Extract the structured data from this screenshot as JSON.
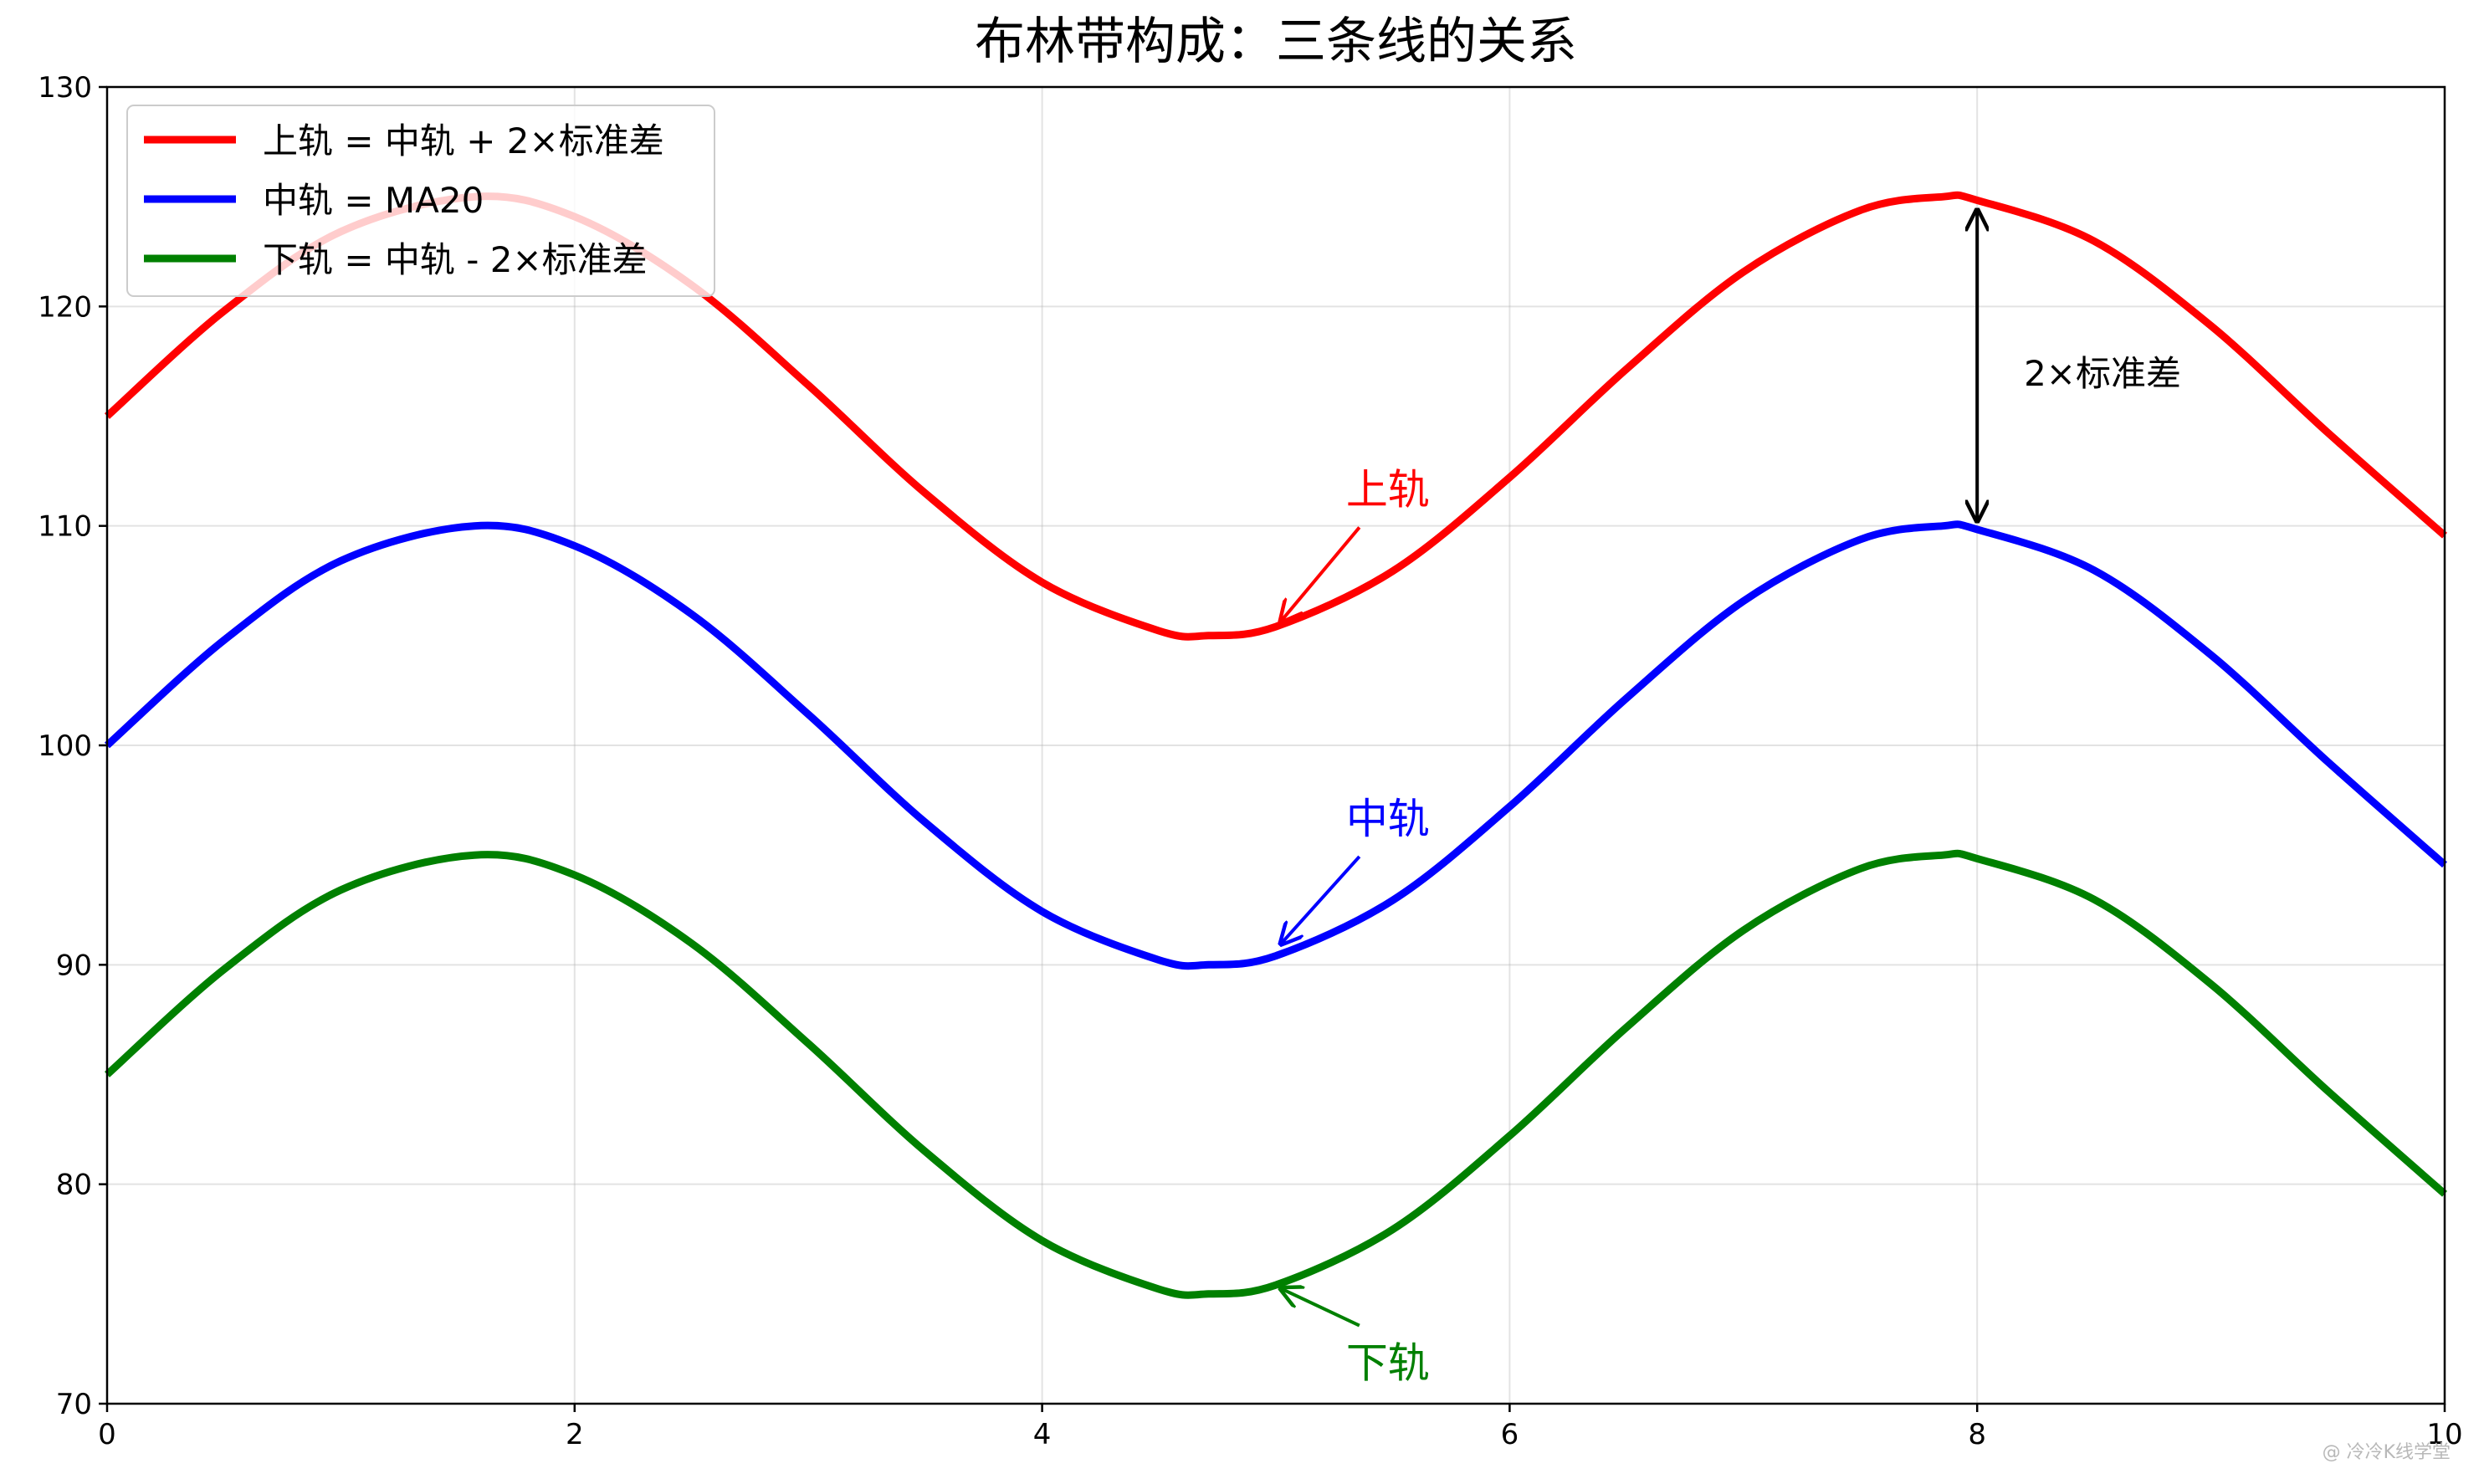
{
  "chart_data": {
    "type": "line",
    "title": "布林带构成：三条线的关系",
    "xlabel": "",
    "ylabel": "",
    "xlim": [
      0,
      10
    ],
    "ylim": [
      70,
      130
    ],
    "xticks": [
      "0",
      "2",
      "4",
      "6",
      "8",
      "10"
    ],
    "yticks": [
      "70",
      "80",
      "90",
      "100",
      "110",
      "120",
      "130"
    ],
    "grid": true,
    "legend_position": "top-left",
    "series": [
      {
        "name": "上轨 = 中轨 + 2×标准差",
        "color": "#ff0000",
        "x": [
          0,
          0.5,
          1.0,
          1.5708,
          2.0,
          2.5,
          3.0,
          3.5,
          4.0,
          4.5,
          4.7124,
          5.0,
          5.5,
          6.0,
          6.5,
          7.0,
          7.5,
          7.854,
          8.0,
          8.5,
          9.0,
          9.5,
          10.0
        ],
        "y": [
          115.0,
          119.79,
          123.41,
          125.0,
          124.09,
          120.98,
          116.41,
          111.49,
          107.43,
          105.22,
          105.0,
          105.41,
          107.94,
          112.21,
          117.15,
          121.57,
          124.38,
          125.0,
          124.84,
          122.98,
          119.12,
          114.25,
          109.56
        ]
      },
      {
        "name": "中轨 = MA20",
        "color": "#0000ff",
        "x": [
          0,
          0.5,
          1.0,
          1.5708,
          2.0,
          2.5,
          3.0,
          3.5,
          4.0,
          4.5,
          4.7124,
          5.0,
          5.5,
          6.0,
          6.5,
          7.0,
          7.5,
          7.854,
          8.0,
          8.5,
          9.0,
          9.5,
          10.0
        ],
        "y": [
          100.0,
          104.79,
          108.41,
          110.0,
          109.09,
          105.98,
          101.41,
          96.49,
          92.43,
          90.22,
          90.0,
          90.41,
          92.94,
          97.21,
          102.15,
          106.57,
          109.38,
          110.0,
          109.84,
          107.98,
          104.12,
          99.25,
          94.56
        ]
      },
      {
        "name": "下轨 = 中轨 - 2×标准差",
        "color": "#008000",
        "x": [
          0,
          0.5,
          1.0,
          1.5708,
          2.0,
          2.5,
          3.0,
          3.5,
          4.0,
          4.5,
          4.7124,
          5.0,
          5.5,
          6.0,
          6.5,
          7.0,
          7.5,
          7.854,
          8.0,
          8.5,
          9.0,
          9.5,
          10.0
        ],
        "y": [
          85.0,
          89.79,
          93.41,
          95.0,
          94.09,
          90.98,
          86.41,
          81.49,
          77.43,
          75.22,
          75.0,
          75.41,
          77.94,
          82.21,
          87.15,
          91.57,
          94.38,
          95.0,
          94.84,
          92.98,
          89.12,
          84.25,
          79.56
        ]
      }
    ],
    "annotations": [
      {
        "text": "上轨",
        "color": "#ff0000",
        "text_at": [
          5.3,
          111
        ],
        "arrow_to": [
          5.0,
          105.5
        ]
      },
      {
        "text": "中轨",
        "color": "#0000ff",
        "text_at": [
          5.3,
          96
        ],
        "arrow_to": [
          5.0,
          90.8
        ]
      },
      {
        "text": "下轨",
        "color": "#008000",
        "text_at": [
          5.3,
          71.2
        ],
        "arrow_to": [
          5.0,
          75.4
        ]
      },
      {
        "text": "2×标准差",
        "color": "#000000",
        "text_at": [
          8.2,
          117
        ],
        "arrow_from": [
          8.0,
          110
        ],
        "arrow_to_point": [
          8.0,
          125
        ]
      }
    ]
  },
  "watermark": "@ 冷冷K线学堂"
}
